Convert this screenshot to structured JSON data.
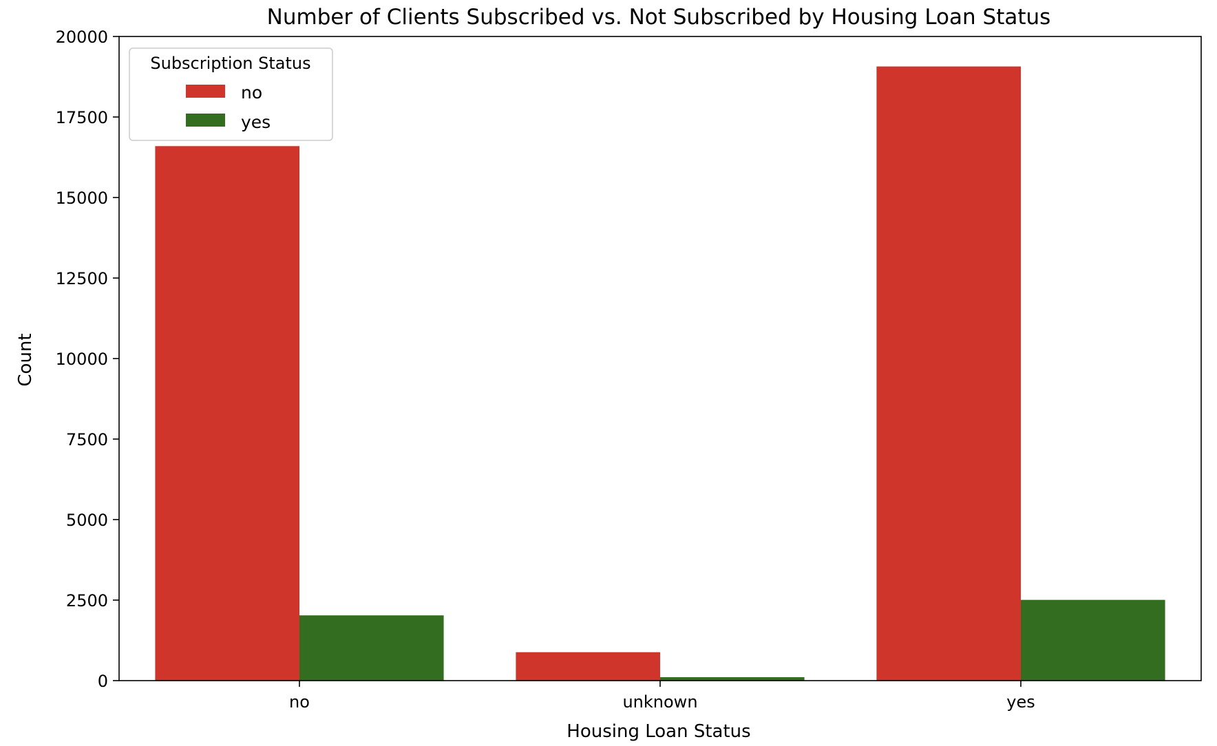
{
  "chart_data": {
    "type": "bar",
    "title": "Number of Clients Subscribed vs. Not Subscribed by Housing Loan Status",
    "xlabel": "Housing Loan Status",
    "ylabel": "Count",
    "categories": [
      "no",
      "unknown",
      "yes"
    ],
    "series": [
      {
        "name": "no",
        "color": "#d0352b",
        "values": [
          16596,
          883,
          19069
        ]
      },
      {
        "name": "yes",
        "color": "#336d20",
        "values": [
          2026,
          107,
          2507
        ]
      }
    ],
    "ylim": [
      0,
      20000
    ],
    "yticks": [
      0,
      2500,
      5000,
      7500,
      10000,
      12500,
      15000,
      17500,
      20000
    ],
    "grid": false,
    "legend": {
      "title": "Subscription Status",
      "placement": "top-left"
    }
  }
}
